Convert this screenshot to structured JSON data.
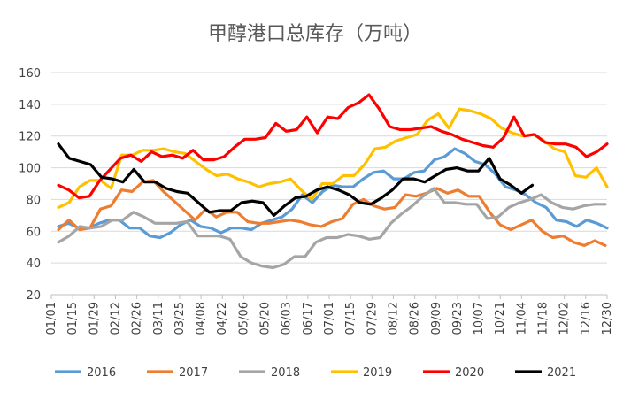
{
  "chart_data": {
    "type": "line",
    "title": "甲醇港口总库存（万吨）",
    "xlabel": "",
    "ylabel": "",
    "ylim": [
      20,
      160
    ],
    "yticks": [
      20,
      40,
      60,
      80,
      100,
      120,
      140,
      160
    ],
    "grid": "horizontal",
    "legend_position": "bottom",
    "x_tick_labels": [
      "01/01",
      "01/15",
      "01/29",
      "02/12",
      "02/26",
      "03/11",
      "03/25",
      "04/08",
      "04/22",
      "05/06",
      "05/20",
      "06/03",
      "06/17",
      "07/01",
      "07/15",
      "07/29",
      "08/12",
      "08/26",
      "09/09",
      "09/23",
      "10/07",
      "10/21",
      "11/04",
      "11/18",
      "12/02",
      "12/16",
      "12/30"
    ],
    "series": [
      {
        "name": "2016",
        "color": "#5B9BD5",
        "values": [
          63,
          65,
          62,
          62,
          65,
          67,
          67,
          62,
          62,
          57,
          56,
          59,
          64,
          67,
          63,
          62,
          59,
          62,
          62,
          61,
          65,
          67,
          69,
          74,
          83,
          78,
          85,
          89,
          88,
          88,
          93,
          97,
          98,
          93,
          93,
          97,
          98,
          105,
          107,
          112,
          109,
          104,
          102,
          96,
          88,
          86,
          83,
          78,
          75,
          67,
          66,
          63,
          67,
          65,
          62
        ]
      },
      {
        "name": "2017",
        "color": "#ED7D31",
        "values": [
          61,
          67,
          61,
          62,
          74,
          76,
          86,
          85,
          91,
          92,
          85,
          79,
          73,
          67,
          74,
          69,
          72,
          72,
          66,
          65,
          65,
          66,
          67,
          66,
          64,
          63,
          66,
          68,
          77,
          80,
          76,
          74,
          75,
          83,
          82,
          84,
          87,
          84,
          86,
          82,
          82,
          72,
          64,
          61,
          64,
          67,
          60,
          56,
          57,
          53,
          51,
          54,
          51
        ]
      },
      {
        "name": "2018",
        "color": "#A5A5A5",
        "values": [
          53,
          57,
          63,
          62,
          63,
          67,
          67,
          72,
          69,
          65,
          65,
          65,
          66,
          57,
          57,
          57,
          55,
          44,
          40,
          38,
          37,
          39,
          44,
          44,
          53,
          56,
          56,
          58,
          57,
          55,
          56,
          65,
          71,
          76,
          82,
          87,
          78,
          78,
          77,
          77,
          68,
          69,
          75,
          78,
          80,
          83,
          78,
          75,
          74,
          76,
          77,
          77
        ]
      },
      {
        "name": "2019",
        "color": "#FFC000",
        "values": [
          75,
          78,
          88,
          92,
          92,
          87,
          108,
          108,
          111,
          111,
          112,
          110,
          109,
          104,
          99,
          95,
          96,
          93,
          91,
          88,
          90,
          91,
          93,
          86,
          80,
          90,
          90,
          95,
          95,
          102,
          112,
          113,
          117,
          119,
          121,
          130,
          134,
          125,
          137,
          136,
          134,
          131,
          125,
          122,
          120,
          121,
          117,
          112,
          110,
          95,
          94,
          100,
          88
        ]
      },
      {
        "name": "2020",
        "color": "#FF0000",
        "values": [
          89,
          86,
          81,
          82,
          92,
          99,
          106,
          108,
          104,
          110,
          107,
          108,
          106,
          111,
          105,
          105,
          107,
          113,
          118,
          118,
          119,
          128,
          123,
          124,
          132,
          122,
          132,
          131,
          138,
          141,
          146,
          137,
          126,
          124,
          124,
          125,
          126,
          123,
          121,
          118,
          116,
          114,
          113,
          119,
          132,
          120,
          121,
          116,
          115,
          115,
          113,
          107,
          110,
          115
        ]
      },
      {
        "name": "2021",
        "color": "#000000",
        "values": [
          115,
          106,
          104,
          102,
          94,
          93,
          91,
          99,
          91,
          91,
          87,
          85,
          84,
          78,
          72,
          73,
          73,
          78,
          79,
          78,
          70,
          76,
          81,
          82,
          86,
          88,
          86,
          83,
          78,
          77,
          81,
          86,
          93,
          93,
          91,
          95,
          99,
          100,
          98,
          98,
          106,
          93,
          89,
          84,
          89
        ]
      }
    ]
  }
}
